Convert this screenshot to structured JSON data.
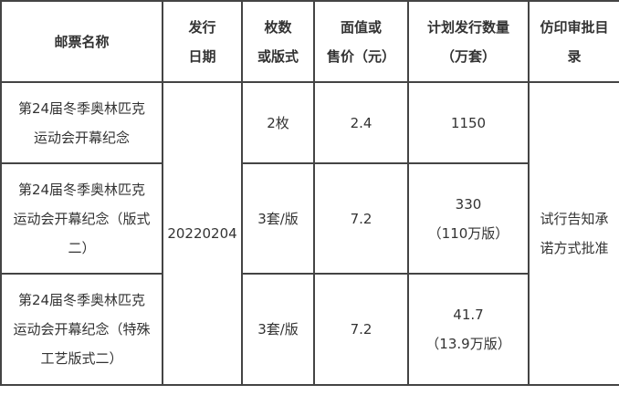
{
  "headers": {
    "name": [
      "邮票名称"
    ],
    "date": [
      "发行",
      "日期"
    ],
    "count": [
      "枚数",
      "或版式"
    ],
    "price": [
      "面值或",
      "售价（元）"
    ],
    "quantity": [
      "计划发行数量",
      "（万套）"
    ],
    "approval": [
      "仿印审批目",
      "录"
    ]
  },
  "issue_date": "20220204",
  "approval_method": [
    "试行告知承",
    "诺方式批准"
  ],
  "rows": [
    {
      "name": [
        "第24届冬季奥林匹克",
        "运动会开幕纪念"
      ],
      "count": "2枚",
      "price": "2.4",
      "quantity": [
        "1150"
      ]
    },
    {
      "name": [
        "第24届冬季奥林匹克",
        "运动会开幕纪念（版式",
        "二）"
      ],
      "count": "3套/版",
      "price": "7.2",
      "quantity": [
        "330",
        "（110万版）"
      ]
    },
    {
      "name": [
        "第24届冬季奥林匹克",
        "运动会开幕纪念（特殊",
        "工艺版式二）"
      ],
      "count": "3套/版",
      "price": "7.2",
      "quantity": [
        "41.7",
        "（13.9万版）"
      ]
    }
  ]
}
